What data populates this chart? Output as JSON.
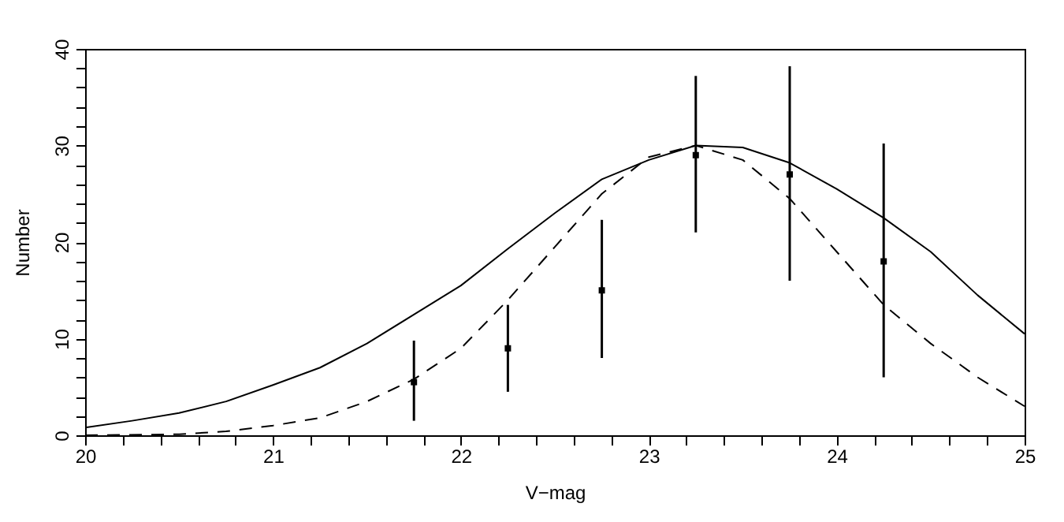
{
  "chart_data": {
    "type": "line",
    "xlabel": "V−mag",
    "ylabel": "Number",
    "xlim": [
      20,
      25
    ],
    "ylim": [
      0,
      40
    ],
    "xticks": [
      20,
      {
        "value": 20.2,
        "label": null
      },
      {
        "value": 20.4,
        "label": null
      },
      {
        "value": 20.6,
        "label": null
      },
      {
        "value": 20.8,
        "label": null
      },
      21,
      {
        "value": 21.2,
        "label": null
      },
      {
        "value": 21.4,
        "label": null
      },
      {
        "value": 21.6,
        "label": null
      },
      {
        "value": 21.8,
        "label": null
      },
      22,
      {
        "value": 22.2,
        "label": null
      },
      {
        "value": 22.4,
        "label": null
      },
      {
        "value": 22.6,
        "label": null
      },
      {
        "value": 22.8,
        "label": null
      },
      23,
      {
        "value": 23.2,
        "label": null
      },
      {
        "value": 23.4,
        "label": null
      },
      {
        "value": 23.6,
        "label": null
      },
      {
        "value": 23.8,
        "label": null
      },
      24,
      {
        "value": 24.2,
        "label": null
      },
      {
        "value": 24.4,
        "label": null
      },
      {
        "value": 24.6,
        "label": null
      },
      {
        "value": 24.8,
        "label": null
      },
      25
    ],
    "yticks": [
      0,
      {
        "value": 2,
        "label": null
      },
      {
        "value": 4,
        "label": null
      },
      {
        "value": 6,
        "label": null
      },
      {
        "value": 8,
        "label": null
      },
      10,
      {
        "value": 12,
        "label": null
      },
      {
        "value": 14,
        "label": null
      },
      {
        "value": 16,
        "label": null
      },
      {
        "value": 18,
        "label": null
      },
      20,
      {
        "value": 22,
        "label": null
      },
      {
        "value": 24,
        "label": null
      },
      {
        "value": 26,
        "label": null
      },
      {
        "value": 28,
        "label": null
      },
      30,
      {
        "value": 32,
        "label": null
      },
      {
        "value": 34,
        "label": null
      },
      {
        "value": 36,
        "label": null
      },
      {
        "value": 38,
        "label": null
      },
      40
    ],
    "grid": false,
    "series": [
      {
        "color": "#000000",
        "line_style": "solid",
        "marker": "none",
        "x": [
          20,
          20.25,
          20.5,
          20.75,
          21,
          21.25,
          21.5,
          21.75,
          22,
          22.25,
          22.5,
          22.75,
          23,
          23.25,
          23.5,
          23.75,
          24,
          24.25,
          24.5,
          24.75,
          25
        ],
        "values": [
          0.8,
          1.5,
          2.3,
          3.5,
          5.2,
          7,
          9.5,
          12.5,
          15.5,
          19.3,
          23,
          26.5,
          28.5,
          30,
          29.8,
          28.2,
          25.5,
          22.5,
          19,
          14.5,
          10.5
        ]
      },
      {
        "color": "#000000",
        "line_style": "dashed",
        "marker": "none",
        "x": [
          20,
          20.5,
          20.75,
          21,
          21.25,
          21.5,
          21.75,
          22,
          22.25,
          22.5,
          22.75,
          23,
          23.25,
          23.5,
          23.75,
          24,
          24.25,
          24.5,
          24.75,
          25
        ],
        "values": [
          0,
          0.1,
          0.4,
          1,
          1.8,
          3.5,
          5.8,
          9,
          14,
          19.5,
          25,
          28.8,
          30,
          28.5,
          24.5,
          19,
          13.5,
          9.5,
          6,
          3
        ]
      },
      {
        "type": "scatter",
        "color": "#000000",
        "marker": "square",
        "x": [
          21.75,
          22.25,
          22.75,
          23.25,
          23.75,
          24.25
        ],
        "values": [
          5.5,
          9,
          15,
          29,
          27,
          18
        ],
        "errors": [
          [
            1.5,
            9.8
          ],
          [
            4.5,
            13.5
          ],
          [
            8,
            22.3
          ],
          [
            21,
            37.2
          ],
          [
            16,
            38.2
          ],
          [
            6,
            30.2
          ]
        ]
      }
    ]
  }
}
